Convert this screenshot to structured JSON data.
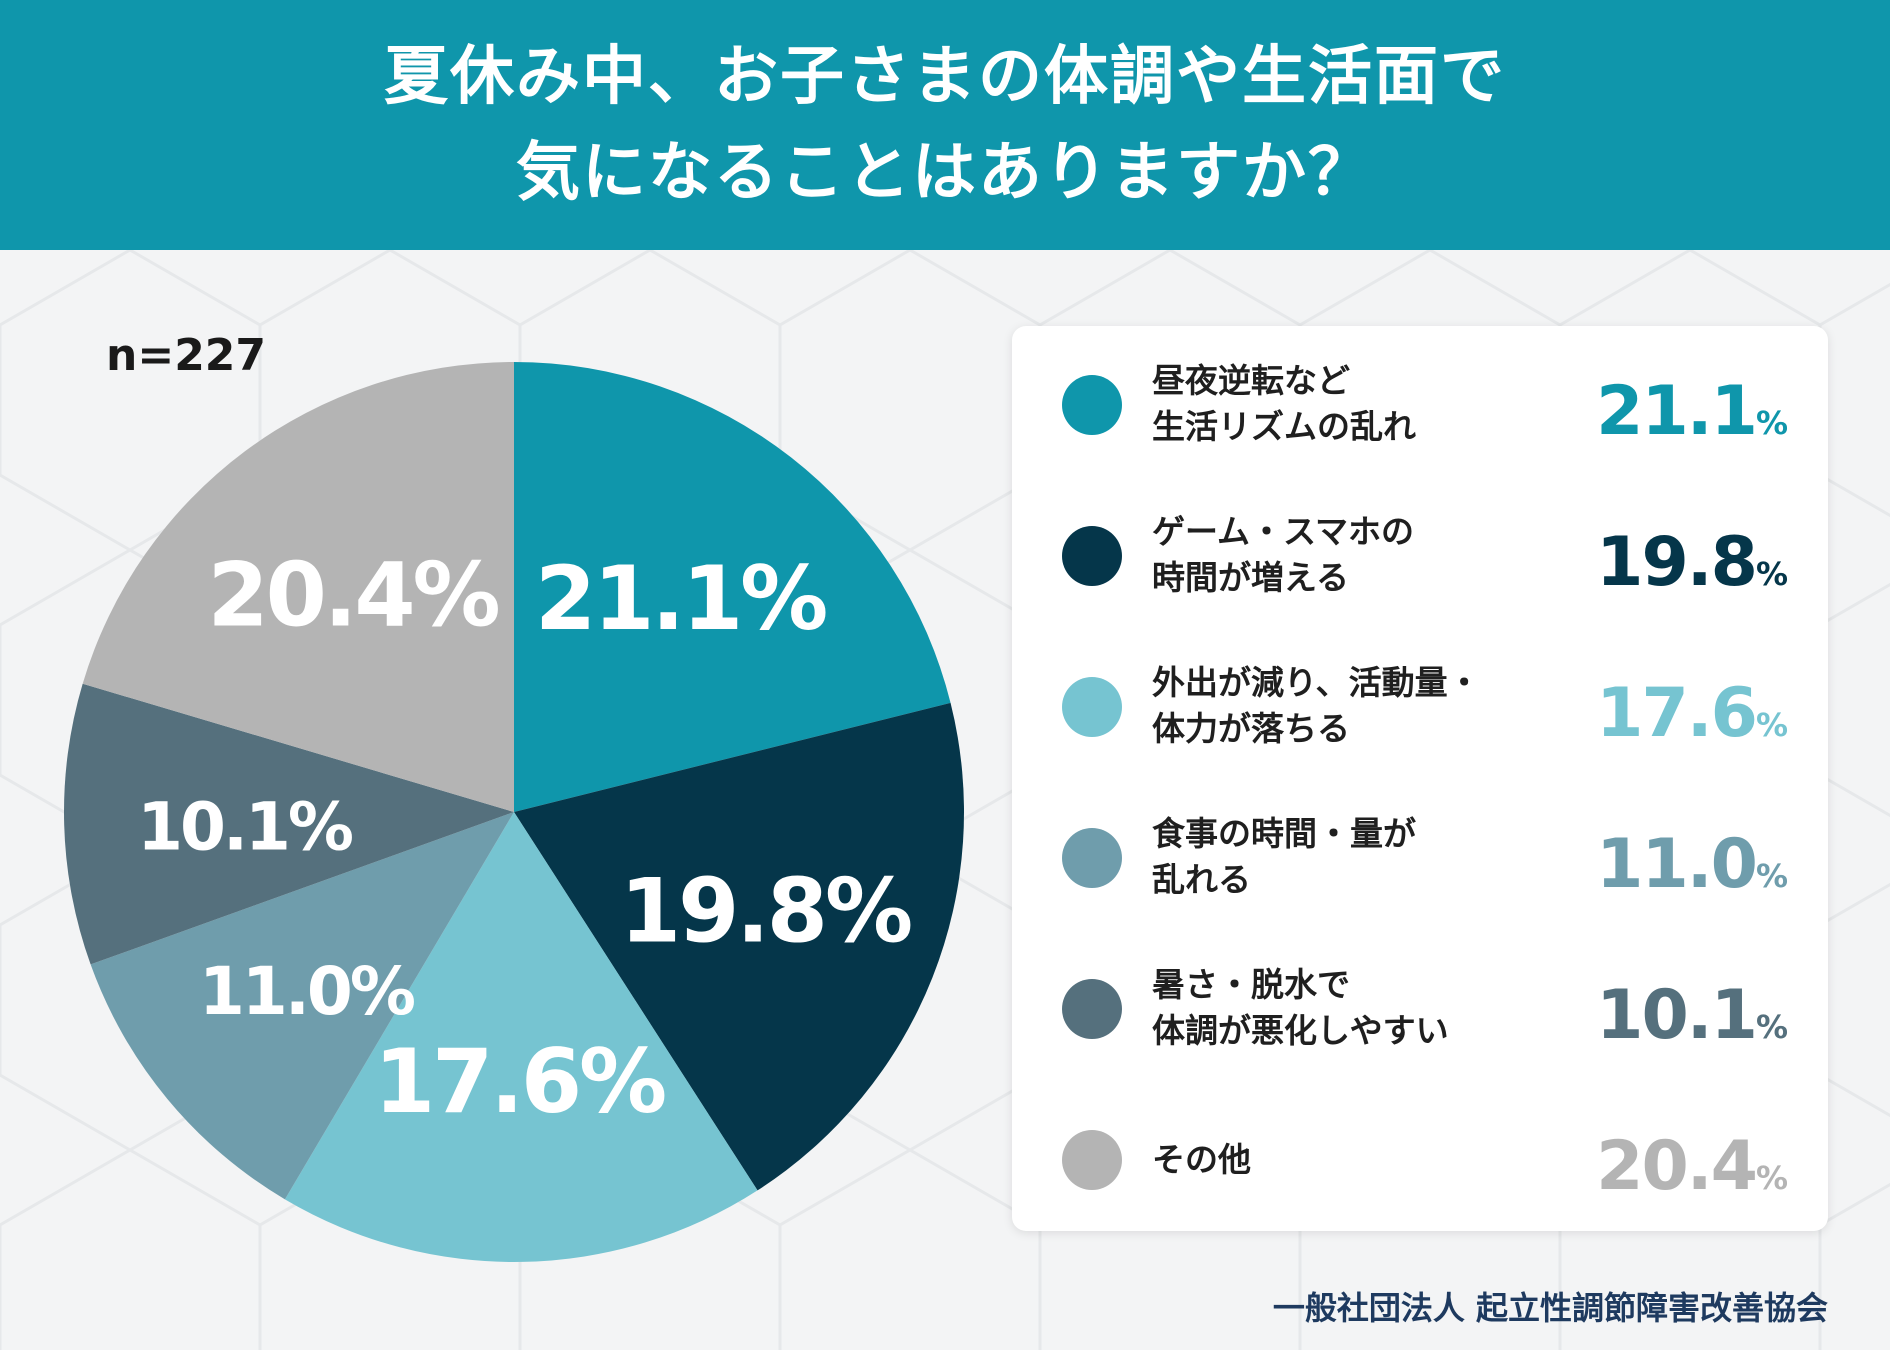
{
  "header": {
    "title_line1": "夏休み中、お子さまの体調や生活面で",
    "title_line2": "気になることはありますか？"
  },
  "sample_size": "n=227",
  "footer": {
    "organization": "一般社団法人 起立性調節障害改善協会"
  },
  "chart_data": {
    "type": "pie",
    "title": "夏休み中、お子さまの体調や生活面で気になることはありますか？",
    "unit": "%",
    "categories": [
      "昼夜逆転など生活リズムの乱れ",
      "ゲーム・スマホの時間が増える",
      "外出が減り、活動量・体力が落ちる",
      "食事の時間・量が乱れる",
      "暑さ・脱水で体調が悪化しやすい",
      "その他"
    ],
    "values": [
      21.1,
      19.8,
      17.6,
      11.0,
      10.1,
      20.4
    ],
    "value_labels": [
      "21.1",
      "19.8",
      "17.6",
      "11.0",
      "10.1",
      "20.4"
    ],
    "colors": [
      "#0f96ab",
      "#05364a",
      "#76c4d1",
      "#6f9dac",
      "#55707d",
      "#b4b4b4"
    ],
    "legend_position": "right",
    "start_angle": "12 o'clock",
    "direction": "clockwise"
  },
  "legend": {
    "items": [
      {
        "label": "昼夜逆転など\n生活リズムの乱れ",
        "value": "21.1",
        "color": "#0f96ab"
      },
      {
        "label": "ゲーム・スマホの\n時間が増える",
        "value": "19.8",
        "color": "#05364a"
      },
      {
        "label": "外出が減り、活動量・\n体力が落ちる",
        "value": "17.6",
        "color": "#76c4d1"
      },
      {
        "label": "食事の時間・量が\n乱れる",
        "value": "11.0",
        "color": "#6f9dac"
      },
      {
        "label": "暑さ・脱水で\n体調が悪化しやすい",
        "value": "10.1",
        "color": "#55707d"
      },
      {
        "label": "その他",
        "value": "20.4",
        "color": "#b4b4b4"
      }
    ],
    "pct_symbol": "%"
  }
}
